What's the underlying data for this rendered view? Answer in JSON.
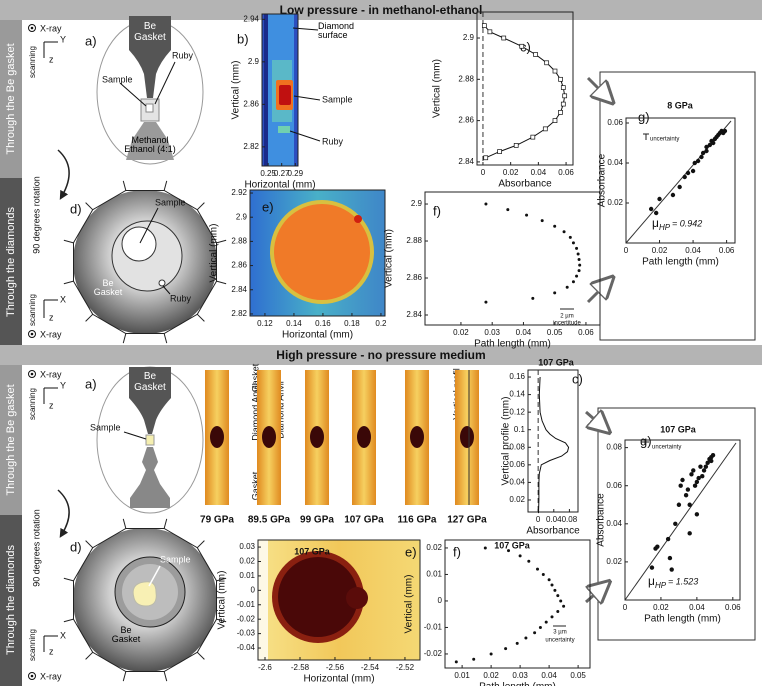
{
  "sections": [
    {
      "title": "Low pressure - in methanol-ethanol",
      "side_labels": [
        "Through the Be gasket",
        "Through the diamonds"
      ],
      "rotation": "90 degrees rotation",
      "top_axes": {
        "source": "X-ray",
        "scan": "scanning",
        "h": "Y",
        "v": "z"
      },
      "diagram_a": {
        "panel": "a)",
        "labels": [
          "Be Gasket",
          "Sample",
          "Ruby",
          "Methanol Ethanol (4:1)"
        ]
      },
      "diagram_d": {
        "panel": "d)",
        "labels": [
          "Sample",
          "Be Gasket",
          "Ruby"
        ]
      },
      "bottom_axes": {
        "h": "X",
        "v": "z",
        "scan": "scanning",
        "source": "X-ray"
      }
    },
    {
      "title": "High pressure - no pressure medium",
      "side_labels": [
        "Through the Be gasket",
        "Through the diamonds"
      ],
      "rotation": "90 degrees rotation",
      "top_axes": {
        "source": "X-ray",
        "scan": "scanning",
        "h": "Y",
        "v": "z"
      },
      "diagram_a": {
        "panel": "a)",
        "labels": [
          "Be Gasket",
          "Sample"
        ]
      },
      "diagram_d": {
        "panel": "d)",
        "labels": [
          "Sample",
          "Be Gasket"
        ]
      },
      "bottom_axes": {
        "h": "X",
        "v": "z",
        "scan": "scanning",
        "source": "X-ray"
      }
    }
  ],
  "chart_data": [
    {
      "type": "heatmap",
      "panel": "b)",
      "x_label": "Horizontal (mm)",
      "y_label": "Vertical (mm)",
      "xlim": [
        0.241,
        0.294
      ],
      "ylim": [
        2.802,
        2.945
      ],
      "xticks": [
        0.25,
        0.27,
        0.29
      ],
      "yticks": [
        2.82,
        2.86,
        2.9,
        2.94
      ],
      "annotations": [
        "Diamond surface",
        "Sample",
        "Ruby"
      ]
    },
    {
      "type": "line",
      "panel": "c)",
      "x_label": "Absorbance",
      "y_label": "Vertical (mm)",
      "xlim": [
        -0.0043,
        0.065
      ],
      "ylim": [
        2.8385,
        2.9126
      ],
      "xticks": [
        0,
        0.02,
        0.04,
        0.06
      ],
      "yticks": [
        2.84,
        2.86,
        2.88,
        2.9
      ],
      "marker": "square",
      "vline": 0,
      "x": [
        0.002,
        0.012,
        0.024,
        0.036,
        0.045,
        0.052,
        0.056,
        0.058,
        0.059,
        0.058,
        0.056,
        0.052,
        0.046,
        0.038,
        0.028,
        0.015,
        0.005,
        0.001
      ],
      "values": [
        2.842,
        2.845,
        2.848,
        2.852,
        2.856,
        2.86,
        2.864,
        2.868,
        2.872,
        2.876,
        2.88,
        2.884,
        2.888,
        2.892,
        2.896,
        2.9,
        2.903,
        2.906
      ]
    },
    {
      "type": "heatmap",
      "panel": "e)",
      "x_label": "Horizontal (mm)",
      "y_label": "Vertical (mm)",
      "xlim": [
        0.1097,
        0.2028
      ],
      "ylim": [
        2.8183,
        2.9225
      ],
      "xticks": [
        0.12,
        0.14,
        0.16,
        0.18,
        0.2
      ],
      "yticks": [
        2.82,
        2.84,
        2.86,
        2.88,
        2.9,
        2.92
      ]
    },
    {
      "type": "scatter",
      "panel": "f)",
      "x_label": "Path length (mm)",
      "y_label": "Vertical (mm)",
      "xlim": [
        0.0085,
        0.0645
      ],
      "ylim": [
        2.8346,
        2.9065
      ],
      "xticks": [
        0.02,
        0.03,
        0.04,
        0.05,
        0.06
      ],
      "yticks": [
        2.84,
        2.86,
        2.88,
        2.9
      ],
      "annotations": [
        "2 µm",
        "incertitude"
      ],
      "x": [
        0.028,
        0.035,
        0.041,
        0.046,
        0.05,
        0.053,
        0.055,
        0.056,
        0.057,
        0.0575,
        0.0578,
        0.058,
        0.0578,
        0.057,
        0.056,
        0.054,
        0.05,
        0.043,
        0.028
      ],
      "values": [
        2.9,
        2.897,
        2.894,
        2.891,
        2.888,
        2.885,
        2.882,
        2.879,
        2.876,
        2.873,
        2.87,
        2.867,
        2.864,
        2.861,
        2.858,
        2.855,
        2.852,
        2.849,
        2.847
      ]
    },
    {
      "type": "scatter",
      "panel": "g)",
      "title": "8 GPa",
      "x_label": "Path length (mm)",
      "y_label": "Absorbance",
      "xlim": [
        0,
        0.065
      ],
      "ylim": [
        0,
        0.0625
      ],
      "xticks": [
        0,
        0.02,
        0.04,
        0.06
      ],
      "yticks": [
        0.02,
        0.04,
        0.06
      ],
      "fit": true,
      "annotations": [
        "uncertainty"
      ],
      "mu_symbol": "μ",
      "mu_subscript": "HP",
      "mu_value": "= 0.942",
      "x": [
        0.015,
        0.018,
        0.02,
        0.028,
        0.032,
        0.035,
        0.037,
        0.04,
        0.041,
        0.043,
        0.045,
        0.046,
        0.048,
        0.048,
        0.05,
        0.051,
        0.052,
        0.053,
        0.054,
        0.055,
        0.056,
        0.057,
        0.058,
        0.059
      ],
      "values": [
        0.017,
        0.015,
        0.022,
        0.024,
        0.028,
        0.033,
        0.035,
        0.036,
        0.04,
        0.041,
        0.043,
        0.045,
        0.046,
        0.048,
        0.049,
        0.051,
        0.05,
        0.052,
        0.053,
        0.054,
        0.055,
        0.056,
        0.055,
        0.056
      ]
    },
    {
      "type": "strips",
      "panel": "b)",
      "categories": [
        "79 GPa",
        "89.5 GPa",
        "99 GPa",
        "107 GPa",
        "116 GPa",
        "127 GPa"
      ],
      "annotations": [
        "Gasket",
        "Diamond Anvil",
        "Sample",
        "Diamond Anvil",
        "Gasket",
        "Vertical profil"
      ]
    },
    {
      "type": "line",
      "panel": "c)",
      "title": "107 GPa",
      "x_label": "Absorbance",
      "y_label": "Vertical profile (mm)",
      "xlim": [
        -0.026,
        0.102
      ],
      "ylim": [
        0.0063,
        0.168
      ],
      "xticks": [
        0,
        0.04,
        0.08
      ],
      "yticks": [
        0.02,
        0.04,
        0.06,
        0.08,
        0.1,
        0.12,
        0.14,
        0.16
      ],
      "vline": 0,
      "x": [
        0.001,
        0.002,
        0.002,
        0.003,
        0.008,
        0.03,
        0.06,
        0.075,
        0.078,
        0.07,
        0.045,
        0.03,
        0.02,
        0.01,
        0.005,
        0.003,
        0.005
      ],
      "values": [
        0.005,
        0.02,
        0.04,
        0.05,
        0.06,
        0.065,
        0.07,
        0.075,
        0.08,
        0.085,
        0.09,
        0.095,
        0.1,
        0.11,
        0.12,
        0.14,
        0.16
      ]
    },
    {
      "type": "heatmap",
      "panel": "e)",
      "title": "107 GPa",
      "x_label": "Horizontal (mm)",
      "y_label": "Vertical (mm)",
      "xlim": [
        -2.604,
        -2.5114
      ],
      "ylim": [
        -0.0483,
        0.0349
      ],
      "xticks": [
        -2.6,
        -2.58,
        -2.56,
        -2.54,
        -2.52
      ],
      "yticks": [
        -0.04,
        -0.03,
        -0.02,
        -0.01,
        0,
        0.01,
        0.02,
        0.03
      ]
    },
    {
      "type": "scatter",
      "panel": "f)",
      "title": "107 GPa",
      "x_label": "Path length (mm)",
      "y_label": "Vertical (mm)",
      "xlim": [
        0.0041,
        0.0541
      ],
      "ylim": [
        -0.0253,
        0.023
      ],
      "xticks": [
        0.01,
        0.02,
        0.03,
        0.04,
        0.05
      ],
      "yticks": [
        -0.02,
        -0.01,
        0,
        0.01,
        0.02
      ],
      "annotations": [
        "3 µm",
        "uncertainty"
      ],
      "x": [
        0.018,
        0.026,
        0.03,
        0.033,
        0.036,
        0.038,
        0.04,
        0.041,
        0.042,
        0.043,
        0.044,
        0.045,
        0.043,
        0.041,
        0.039,
        0.037,
        0.035,
        0.032,
        0.029,
        0.025,
        0.02,
        0.014,
        0.008
      ],
      "values": [
        0.02,
        0.019,
        0.017,
        0.015,
        0.012,
        0.01,
        0.008,
        0.006,
        0.004,
        0.002,
        0,
        -0.002,
        -0.004,
        -0.006,
        -0.008,
        -0.01,
        -0.012,
        -0.014,
        -0.016,
        -0.018,
        -0.02,
        -0.022,
        -0.023
      ]
    },
    {
      "type": "scatter",
      "panel": "g)",
      "title": "107 GPa",
      "x_label": "Path length (mm)",
      "y_label": "Absorbance",
      "xlim": [
        0,
        0.064
      ],
      "ylim": [
        0,
        0.084
      ],
      "xticks": [
        0,
        0.02,
        0.04,
        0.06
      ],
      "yticks": [
        0.02,
        0.04,
        0.06,
        0.08
      ],
      "fit": true,
      "annotations": [
        "uncertainty"
      ],
      "mu_symbol": "μ",
      "mu_subscript": "HP",
      "mu_value": "= 1.523",
      "x": [
        0.015,
        0.017,
        0.018,
        0.024,
        0.025,
        0.026,
        0.028,
        0.03,
        0.031,
        0.032,
        0.034,
        0.035,
        0.036,
        0.036,
        0.037,
        0.038,
        0.039,
        0.04,
        0.04,
        0.041,
        0.042,
        0.043,
        0.044,
        0.045,
        0.046,
        0.047,
        0.048,
        0.048,
        0.049
      ],
      "values": [
        0.017,
        0.027,
        0.028,
        0.032,
        0.022,
        0.016,
        0.04,
        0.05,
        0.06,
        0.063,
        0.055,
        0.058,
        0.05,
        0.035,
        0.066,
        0.068,
        0.06,
        0.062,
        0.045,
        0.064,
        0.07,
        0.065,
        0.068,
        0.07,
        0.072,
        0.074,
        0.073,
        0.075,
        0.076
      ]
    }
  ]
}
